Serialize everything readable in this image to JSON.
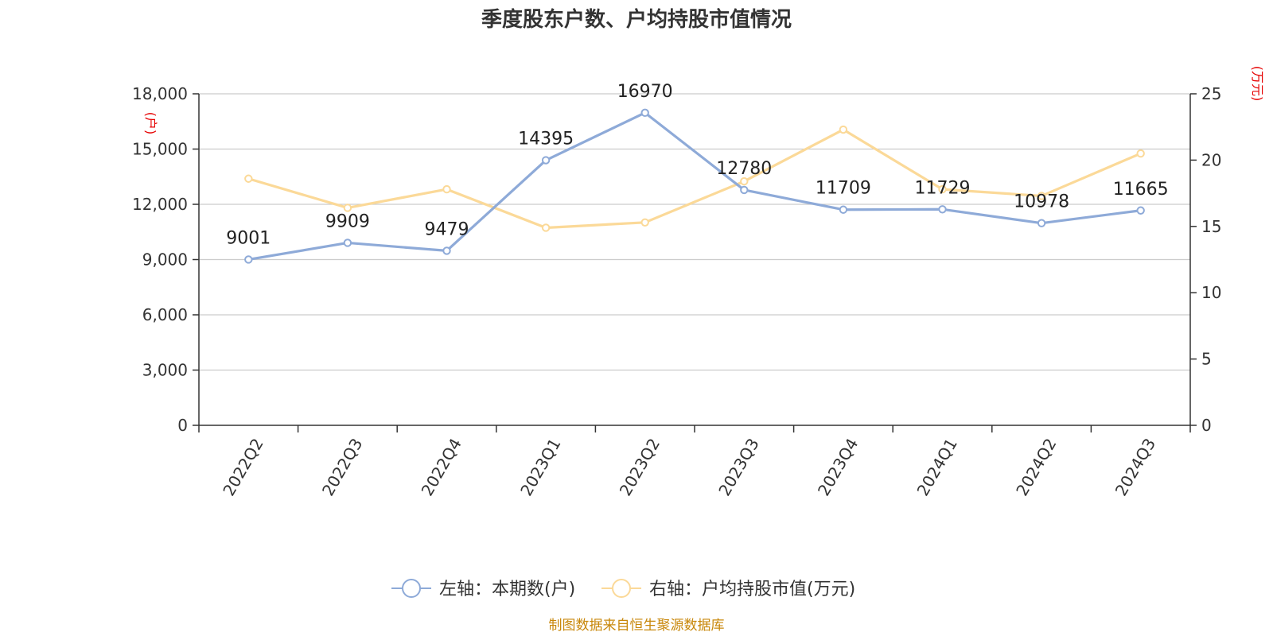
{
  "chart_data": {
    "type": "line",
    "title": "季度股东户数、户均持股市值情况",
    "categories": [
      "2022Q2",
      "2022Q3",
      "2022Q4",
      "2023Q1",
      "2023Q2",
      "2023Q3",
      "2023Q4",
      "2024Q1",
      "2024Q2",
      "2024Q3"
    ],
    "left_axis": {
      "unit": "(户)",
      "range": [
        0,
        18000
      ],
      "ticks": [
        0,
        3000,
        6000,
        9000,
        12000,
        15000,
        18000
      ],
      "tick_labels": [
        "0",
        "3,000",
        "6,000",
        "9,000",
        "12,000",
        "15,000",
        "18,000"
      ]
    },
    "right_axis": {
      "unit": "(万元)",
      "range": [
        0,
        25
      ],
      "ticks": [
        0,
        5,
        10,
        15,
        20,
        25
      ],
      "tick_labels": [
        "0",
        "5",
        "10",
        "15",
        "20",
        "25"
      ]
    },
    "grid": true,
    "legend_position": "bottom",
    "series": [
      {
        "name": "左轴：本期数(户)",
        "axis": "left",
        "color": "#8eaad8",
        "values": [
          9001,
          9909,
          9479,
          14395,
          16970,
          12780,
          11709,
          11729,
          10978,
          11665
        ],
        "labels": [
          "9001",
          "9909",
          "9479",
          "14395",
          "16970",
          "12780",
          "11709",
          "11729",
          "10978",
          "11665"
        ]
      },
      {
        "name": "右轴：户均持股市值(万元)",
        "axis": "right",
        "color": "#fbd998",
        "values": [
          18.6,
          16.4,
          17.8,
          14.9,
          15.3,
          18.4,
          22.3,
          17.8,
          17.3,
          20.5
        ]
      }
    ],
    "source": "制图数据来自恒生聚源数据库"
  }
}
